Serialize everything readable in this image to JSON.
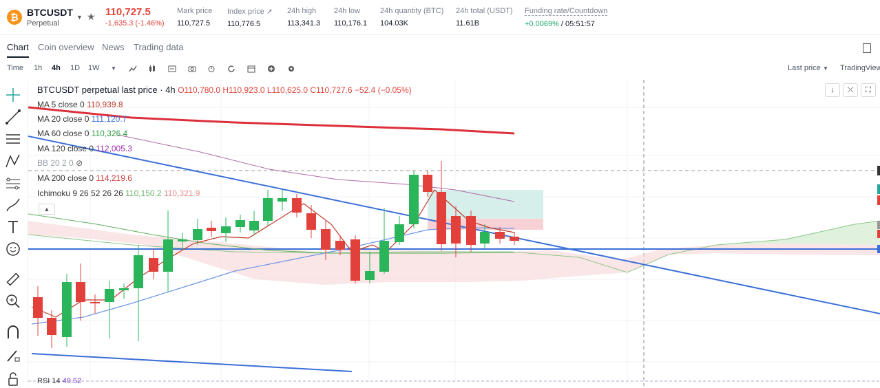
{
  "header": {
    "symbol": "BTCUSDT",
    "contract": "Perpetual",
    "coin_glyph": "₿",
    "last_price": "110,727.5",
    "change": "-1,635.3 (-1.46%)",
    "stats": [
      {
        "label": "Mark price",
        "value": "110,727.5"
      },
      {
        "label": "Index price",
        "value": "110,776.5"
      },
      {
        "label": "24h high",
        "value": "113,341.3"
      },
      {
        "label": "24h low",
        "value": "110,176.1"
      },
      {
        "label": "24h quantity (BTC)",
        "value": "104.03K"
      },
      {
        "label": "24h total (USDT)",
        "value": "11.61B"
      }
    ],
    "funding_label": "Funding rate/Countdown",
    "funding_rate": "+0.0069%",
    "countdown": "/ 05:51:57"
  },
  "tabs": [
    "Chart",
    "Coin overview",
    "News",
    "Trading data"
  ],
  "toolbar": {
    "intervals": [
      "Time",
      "1h",
      "4h",
      "1D",
      "1W"
    ],
    "active_interval": "4h",
    "last_price_menu": "Last price",
    "view_menu": "TradingView"
  },
  "chart": {
    "title": "BTCUSDT perpetual last price · 4h",
    "ohlc": "O110,780.0 H110,923.0 L110,625.0 C110,727.6 −52.4 (−0.05%)",
    "indicators": [
      {
        "label": "MA 5 close 0",
        "value": "110,939.8",
        "color": "#c0392b"
      },
      {
        "label": "MA 20 close 0",
        "value": "111,120.7",
        "color": "#3b6fd8"
      },
      {
        "label": "MA 60 close 0",
        "value": "110,326.4",
        "color": "#2e9e44"
      },
      {
        "label": "MA 120 close 0",
        "value": "112,005.3",
        "color": "#9b2fae"
      },
      {
        "label": "BB 20 2 0",
        "value": "",
        "color": "#888888"
      },
      {
        "label": "MA 200 close 0",
        "value": "114,219.6",
        "color": "#d23c3c"
      },
      {
        "label": "Ichimoku 9 26 52 26 26",
        "value": "110,150.2",
        "value2": "110,321.9",
        "color": "#6fb46f",
        "color2": "#e38b8b"
      }
    ],
    "rsi_label": "RSI 14",
    "rsi_value": "49.52",
    "colors": {
      "up": "#26a69a",
      "down": "#ef5350",
      "up_strong": "#2ab55a",
      "down_strong": "#e2403b"
    }
  }
}
